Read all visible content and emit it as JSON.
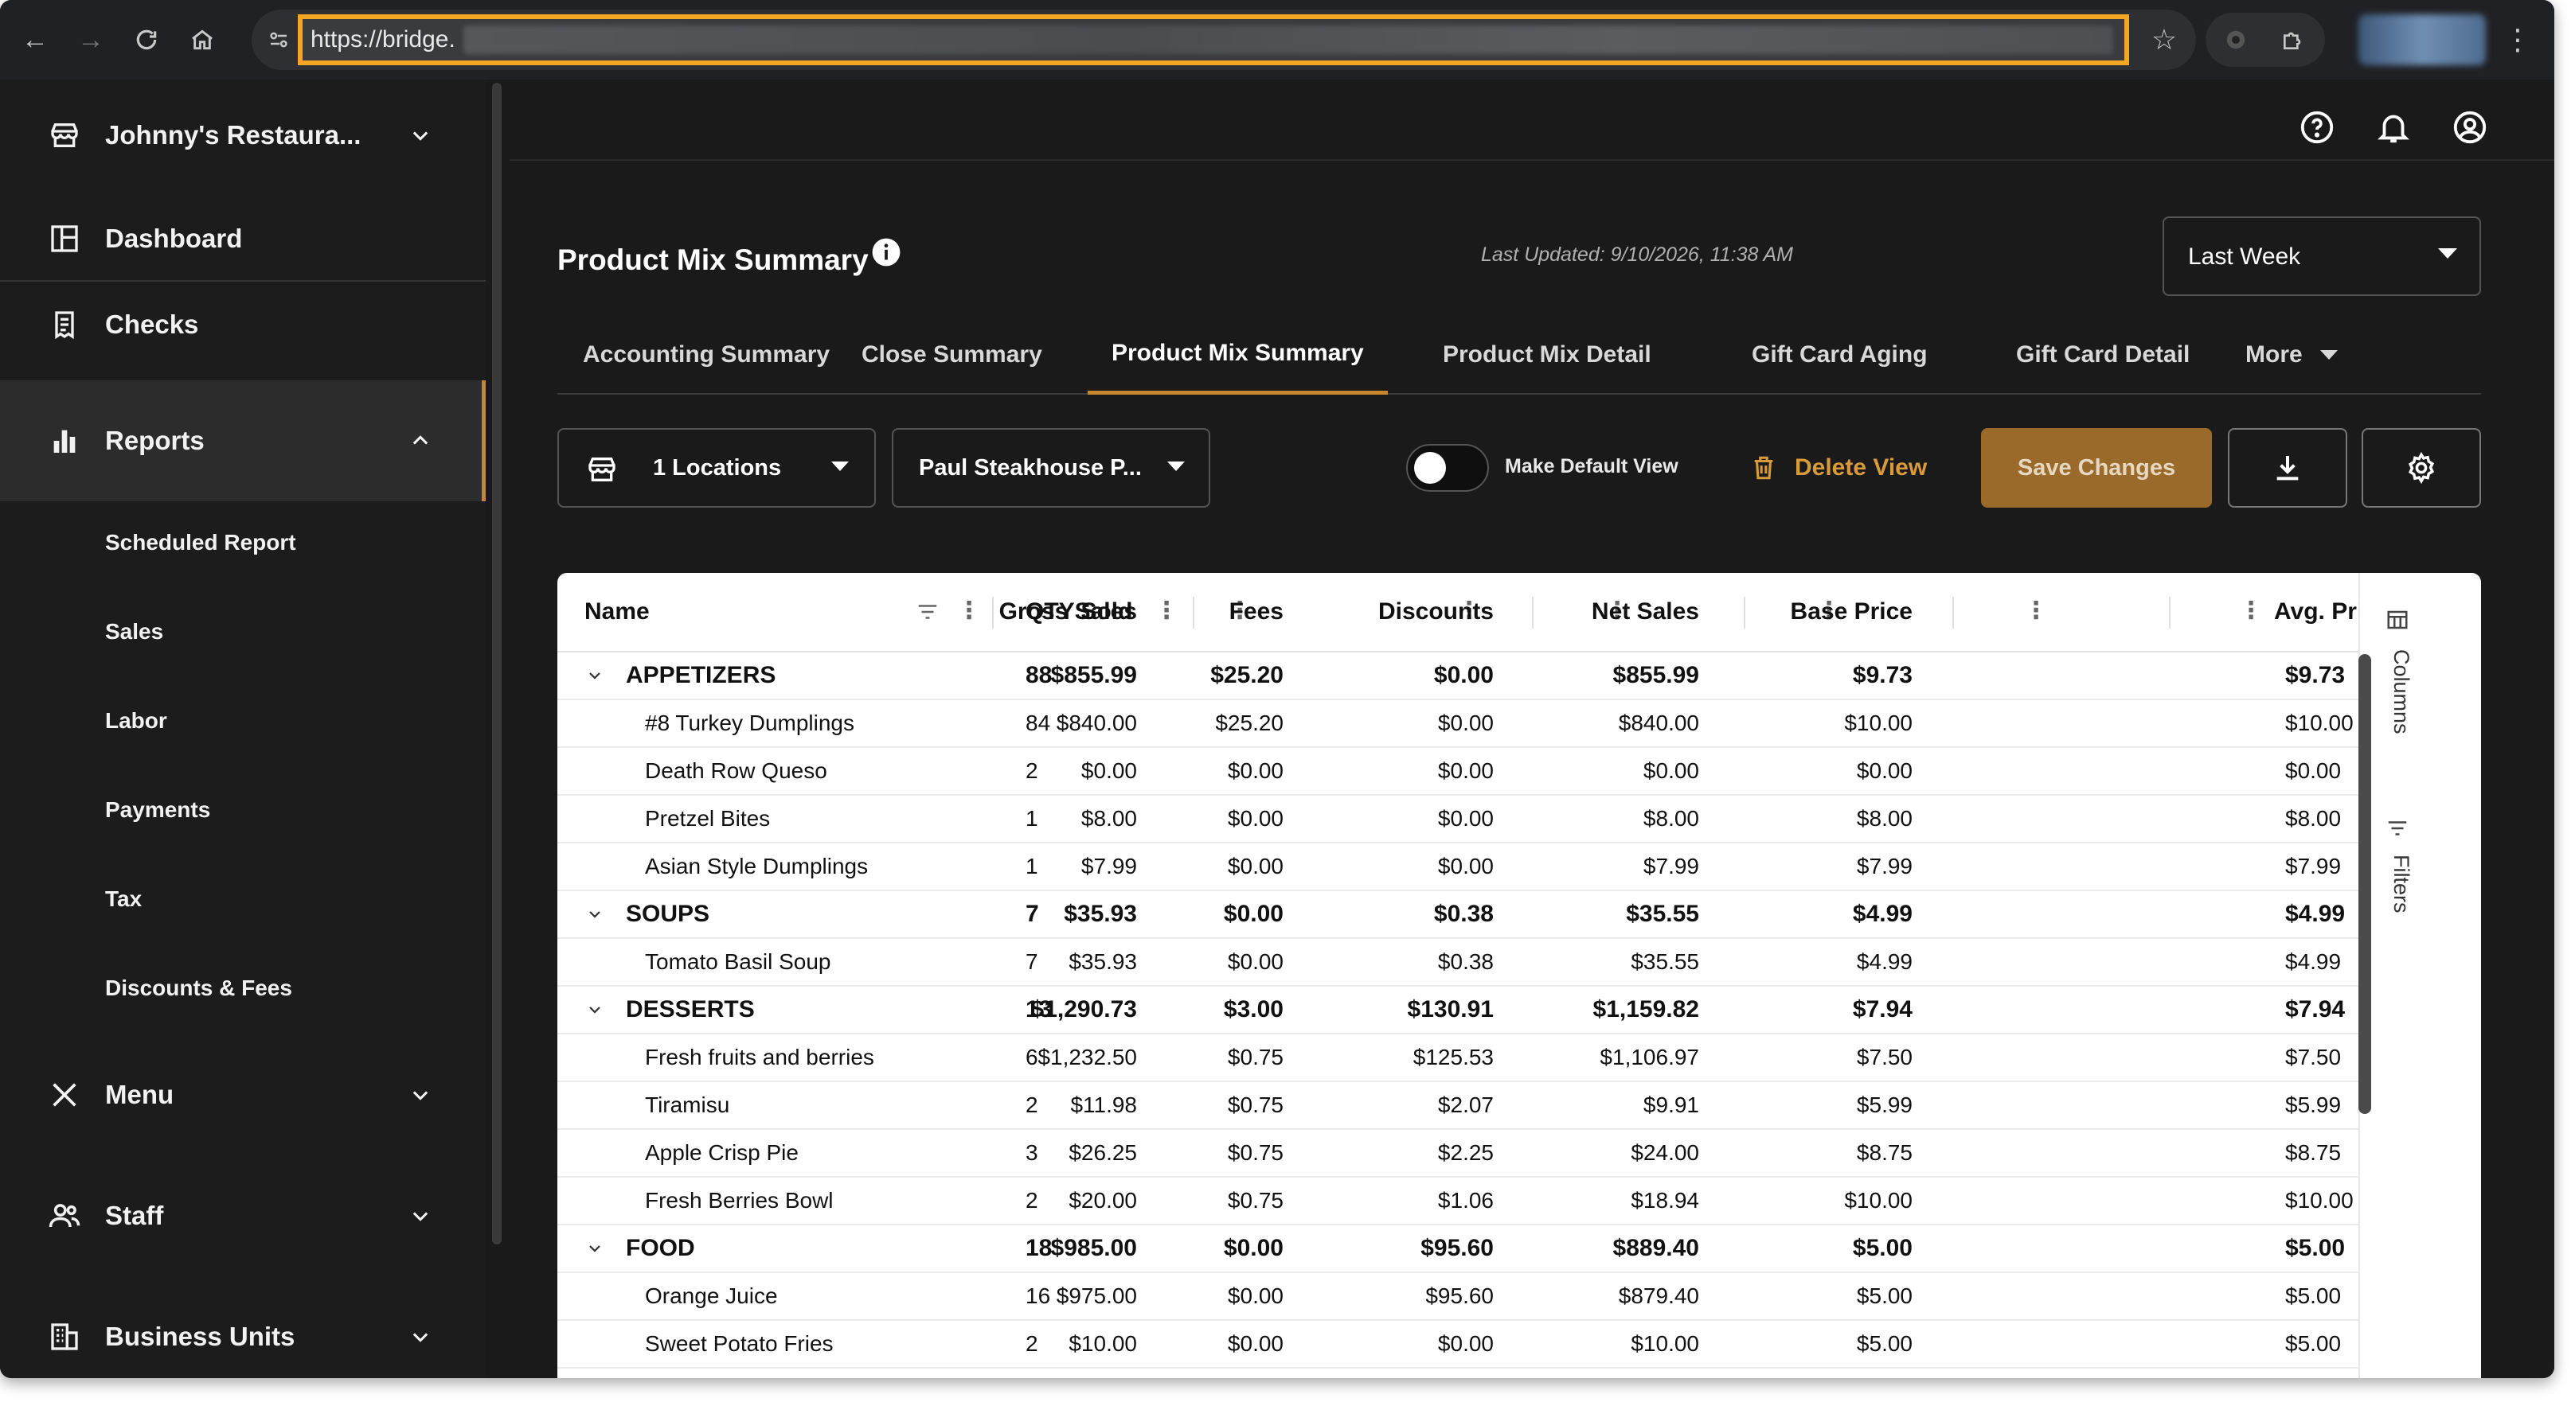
{
  "browser": {
    "url": "https://bridge."
  },
  "sidebar": {
    "restaurant": "Johnny's Restaura...",
    "items": [
      {
        "label": "Dashboard"
      },
      {
        "label": "Checks"
      },
      {
        "label": "Reports"
      },
      {
        "label": "Menu"
      },
      {
        "label": "Staff"
      },
      {
        "label": "Business Units"
      }
    ],
    "report_subitems": [
      "Scheduled Report",
      "Sales",
      "Labor",
      "Payments",
      "Tax",
      "Discounts & Fees"
    ]
  },
  "header": {
    "title": "Product Mix Summary",
    "last_updated": "Last Updated: 9/10/2026, 11:38 AM",
    "period": "Last Week"
  },
  "tabs": [
    {
      "label": "Accounting Summary"
    },
    {
      "label": "Close Summary"
    },
    {
      "label": "Product Mix Summary"
    },
    {
      "label": "Product Mix Detail"
    },
    {
      "label": "Gift Card Aging"
    },
    {
      "label": "Gift Card Detail"
    },
    {
      "label": "More"
    }
  ],
  "controls": {
    "locations": "1 Locations",
    "view": "Paul Steakhouse P...",
    "make_default": "Make Default View",
    "delete_view": "Delete View",
    "save_changes": "Save Changes"
  },
  "colors": {
    "accent": "#c8872c",
    "save_button": "#9a6a2a",
    "delete_text": "#d99a3a"
  },
  "table": {
    "columns": [
      "Name",
      "QTY Sold",
      "Gross Sales",
      "Fees",
      "Discounts",
      "Net Sales",
      "Base Price",
      "Avg. Price"
    ],
    "side_tabs": [
      "Columns",
      "Filters"
    ],
    "rows": [
      {
        "group": true,
        "name": "APPETIZERS",
        "qty": "88",
        "gross": "$855.99",
        "fees": "$25.20",
        "disc": "$0.00",
        "net": "$855.99",
        "base": "$9.73",
        "avg": "$9.73"
      },
      {
        "group": false,
        "name": "#8 Turkey Dumplings",
        "qty": "84",
        "gross": "$840.00",
        "fees": "$25.20",
        "disc": "$0.00",
        "net": "$840.00",
        "base": "$10.00",
        "avg": "$10.00"
      },
      {
        "group": false,
        "name": "Death Row Queso",
        "qty": "2",
        "gross": "$0.00",
        "fees": "$0.00",
        "disc": "$0.00",
        "net": "$0.00",
        "base": "$0.00",
        "avg": "$0.00"
      },
      {
        "group": false,
        "name": "Pretzel Bites",
        "qty": "1",
        "gross": "$8.00",
        "fees": "$0.00",
        "disc": "$0.00",
        "net": "$8.00",
        "base": "$8.00",
        "avg": "$8.00"
      },
      {
        "group": false,
        "name": "Asian Style Dumplings",
        "qty": "1",
        "gross": "$7.99",
        "fees": "$0.00",
        "disc": "$0.00",
        "net": "$7.99",
        "base": "$7.99",
        "avg": "$7.99"
      },
      {
        "group": true,
        "name": "SOUPS",
        "qty": "7",
        "gross": "$35.93",
        "fees": "$0.00",
        "disc": "$0.38",
        "net": "$35.55",
        "base": "$4.99",
        "avg": "$4.99"
      },
      {
        "group": false,
        "name": "Tomato Basil Soup",
        "qty": "7",
        "gross": "$35.93",
        "fees": "$0.00",
        "disc": "$0.38",
        "net": "$35.55",
        "base": "$4.99",
        "avg": "$4.99"
      },
      {
        "group": true,
        "name": "DESSERTS",
        "qty": "13",
        "gross": "$1,290.73",
        "fees": "$3.00",
        "disc": "$130.91",
        "net": "$1,159.82",
        "base": "$7.94",
        "avg": "$7.94"
      },
      {
        "group": false,
        "name": "Fresh fruits and berries",
        "qty": "6",
        "gross": "$1,232.50",
        "fees": "$0.75",
        "disc": "$125.53",
        "net": "$1,106.97",
        "base": "$7.50",
        "avg": "$7.50"
      },
      {
        "group": false,
        "name": "Tiramisu",
        "qty": "2",
        "gross": "$11.98",
        "fees": "$0.75",
        "disc": "$2.07",
        "net": "$9.91",
        "base": "$5.99",
        "avg": "$5.99"
      },
      {
        "group": false,
        "name": "Apple Crisp Pie",
        "qty": "3",
        "gross": "$26.25",
        "fees": "$0.75",
        "disc": "$2.25",
        "net": "$24.00",
        "base": "$8.75",
        "avg": "$8.75"
      },
      {
        "group": false,
        "name": "Fresh Berries Bowl",
        "qty": "2",
        "gross": "$20.00",
        "fees": "$0.75",
        "disc": "$1.06",
        "net": "$18.94",
        "base": "$10.00",
        "avg": "$10.00"
      },
      {
        "group": true,
        "name": "FOOD",
        "qty": "18",
        "gross": "$985.00",
        "fees": "$0.00",
        "disc": "$95.60",
        "net": "$889.40",
        "base": "$5.00",
        "avg": "$5.00"
      },
      {
        "group": false,
        "name": "Orange Juice",
        "qty": "16",
        "gross": "$975.00",
        "fees": "$0.00",
        "disc": "$95.60",
        "net": "$879.40",
        "base": "$5.00",
        "avg": "$5.00"
      },
      {
        "group": false,
        "name": "Sweet Potato Fries",
        "qty": "2",
        "gross": "$10.00",
        "fees": "$0.00",
        "disc": "$0.00",
        "net": "$10.00",
        "base": "$5.00",
        "avg": "$5.00"
      }
    ]
  }
}
